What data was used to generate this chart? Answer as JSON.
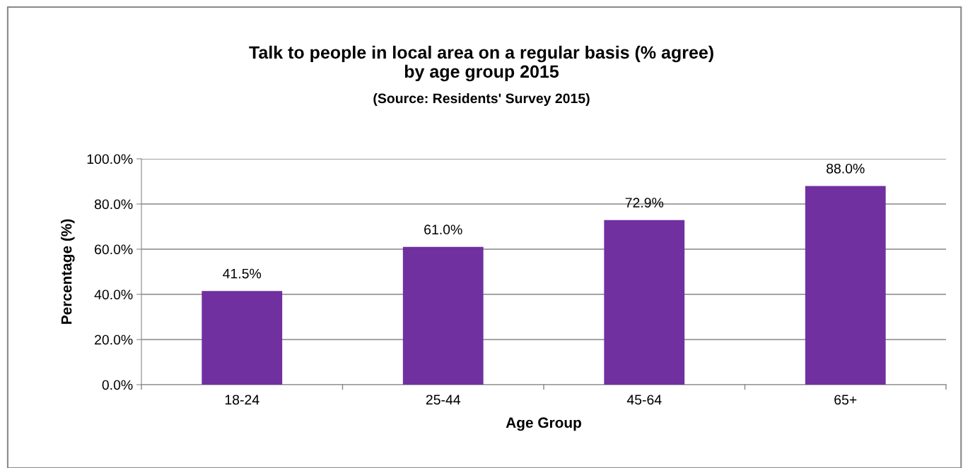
{
  "chart_data": {
    "type": "bar",
    "title": "Talk to people in local area on a regular basis (% agree)\nby age group 2015",
    "subtitle": "(Source: Residents' Survey 2015)",
    "xlabel": "Age Group",
    "ylabel": "Percentage (%)",
    "categories": [
      "18-24",
      "25-44",
      "45-64",
      "65+"
    ],
    "values": [
      41.5,
      61.0,
      72.9,
      88.0
    ],
    "value_labels": [
      "41.5%",
      "61.0%",
      "72.9%",
      "88.0%"
    ],
    "color": "#7030a0",
    "ylim": [
      0,
      100
    ],
    "yticks": [
      {
        "value": 0,
        "label": "0.0%"
      },
      {
        "value": 20,
        "label": "20.0%"
      },
      {
        "value": 40,
        "label": "40.0%"
      },
      {
        "value": 60,
        "label": "60.0%"
      },
      {
        "value": 80,
        "label": "80.0%"
      },
      {
        "value": 100,
        "label": "100.0%"
      }
    ],
    "grid": "y",
    "legend": false
  }
}
